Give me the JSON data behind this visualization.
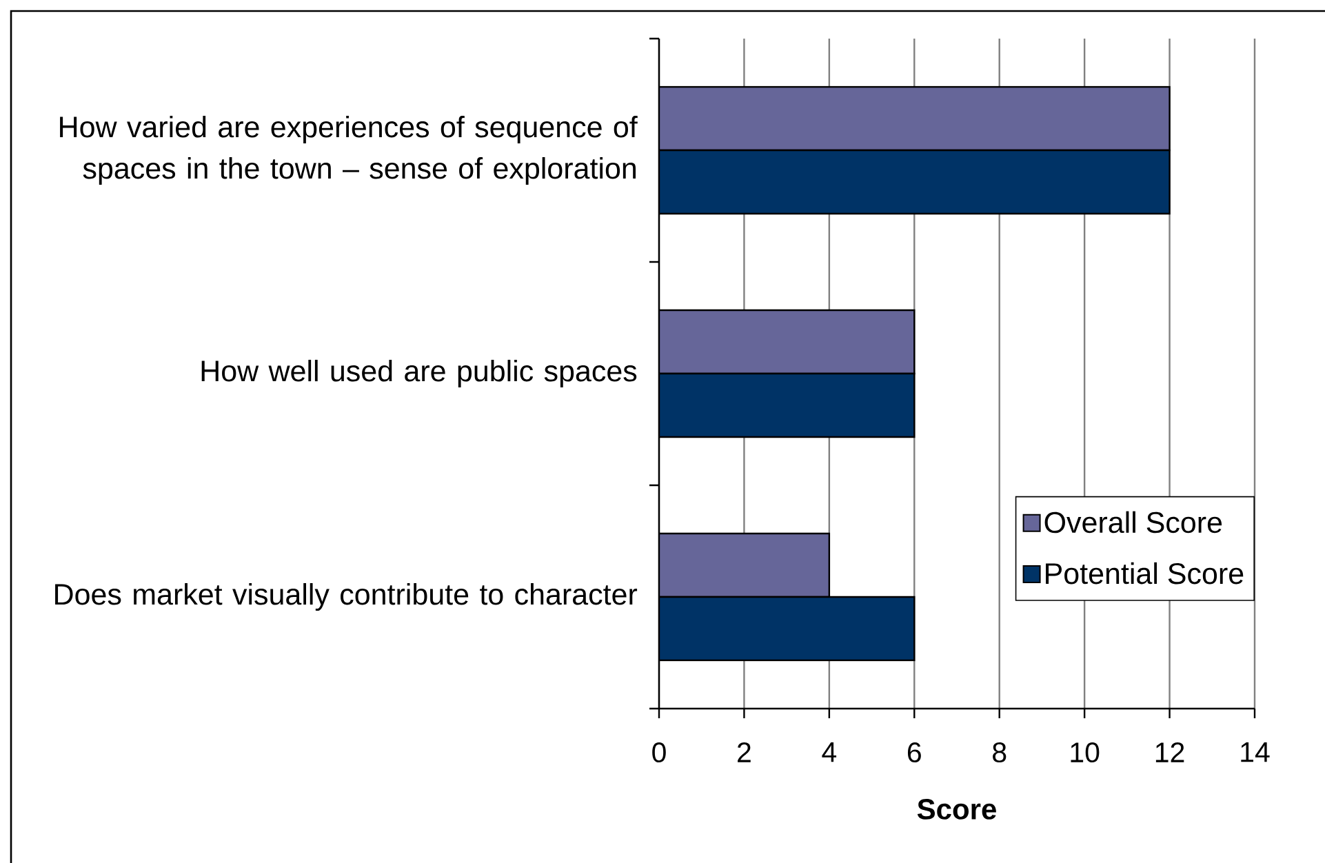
{
  "chart_data": {
    "type": "bar",
    "orientation": "horizontal",
    "xlabel": "Score",
    "categories": [
      "How varied are experiences of sequence of spaces in the town – sense of exploration",
      "How well used are public spaces",
      "Does market visually contribute to character"
    ],
    "series": [
      {
        "name": "Overall Score",
        "color": "#666699",
        "values": [
          12,
          6,
          4
        ]
      },
      {
        "name": "Potential Score",
        "color": "#003366",
        "values": [
          12,
          6,
          6
        ]
      }
    ],
    "xlim": [
      0,
      14
    ],
    "xticks": [
      0,
      2,
      4,
      6,
      8,
      10,
      12,
      14
    ],
    "grid": "x",
    "legend": "bottom right"
  }
}
